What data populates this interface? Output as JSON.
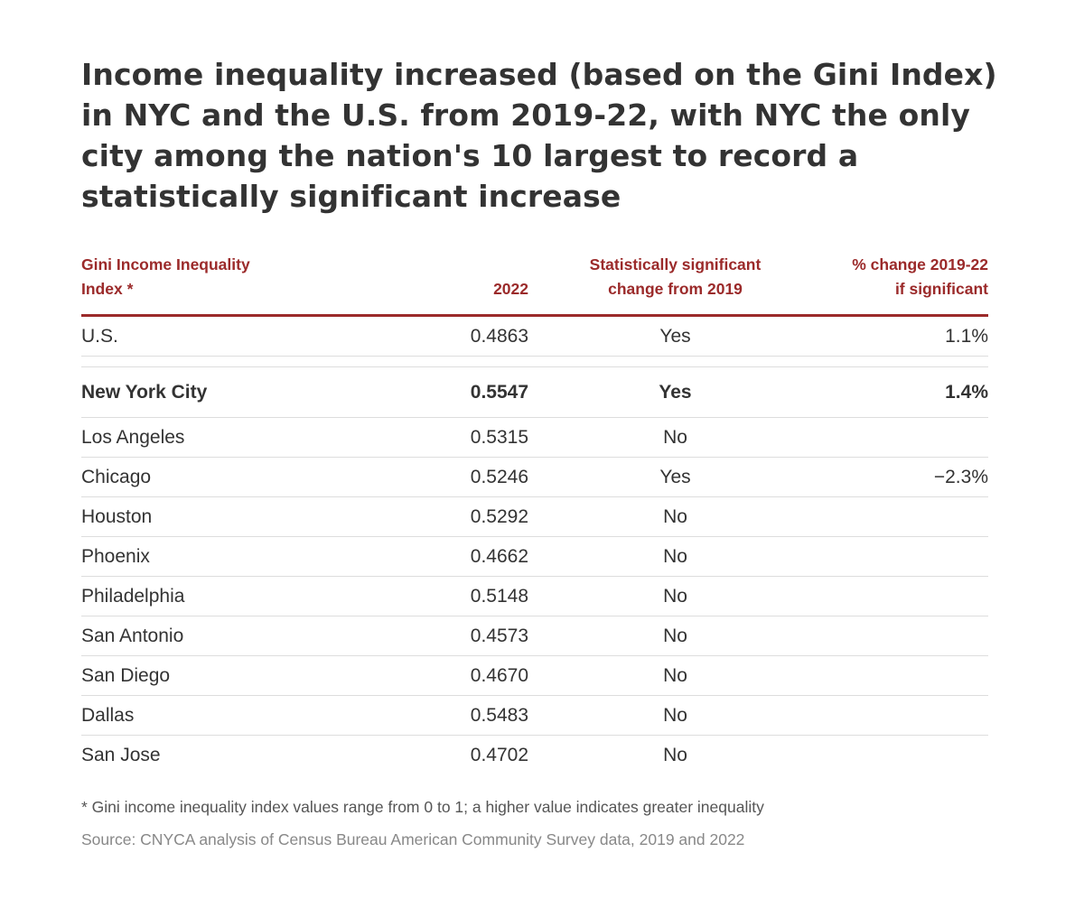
{
  "chart_data": {
    "type": "table",
    "title": "Income inequality increased (based on the Gini Index) in NYC and the U.S. from 2019-22, with NYC the only city among the nation's 10 largest to record a statistically significant increase",
    "columns": [
      {
        "line1": "Gini Income Inequality",
        "line2": "Index *"
      },
      {
        "line1": "",
        "line2": "2022"
      },
      {
        "line1": "Statistically significant",
        "line2": "change from 2019"
      },
      {
        "line1": "% change 2019-22",
        "line2": "if significant"
      }
    ],
    "rows": [
      {
        "name": "U.S.",
        "value": "0.4863",
        "significant": "Yes",
        "pct_change": "1.1%"
      },
      {
        "name": "New York City",
        "value": "0.5547",
        "significant": "Yes",
        "pct_change": "1.4%"
      },
      {
        "name": "Los Angeles",
        "value": "0.5315",
        "significant": "No",
        "pct_change": ""
      },
      {
        "name": "Chicago",
        "value": "0.5246",
        "significant": "Yes",
        "pct_change": "−2.3%"
      },
      {
        "name": "Houston",
        "value": "0.5292",
        "significant": "No",
        "pct_change": ""
      },
      {
        "name": "Phoenix",
        "value": "0.4662",
        "significant": "No",
        "pct_change": ""
      },
      {
        "name": "Philadelphia",
        "value": "0.5148",
        "significant": "No",
        "pct_change": ""
      },
      {
        "name": "San Antonio",
        "value": "0.4573",
        "significant": "No",
        "pct_change": ""
      },
      {
        "name": "San Diego",
        "value": "0.4670",
        "significant": "No",
        "pct_change": ""
      },
      {
        "name": "Dallas",
        "value": "0.5483",
        "significant": "No",
        "pct_change": ""
      },
      {
        "name": "San Jose",
        "value": "0.4702",
        "significant": "No",
        "pct_change": ""
      }
    ],
    "footnote": "* Gini income inequality index values range from 0 to 1; a higher value indicates greater inequality",
    "source": "Source: CNYCA analysis of Census Bureau American Community Survey data, 2019 and 2022"
  }
}
